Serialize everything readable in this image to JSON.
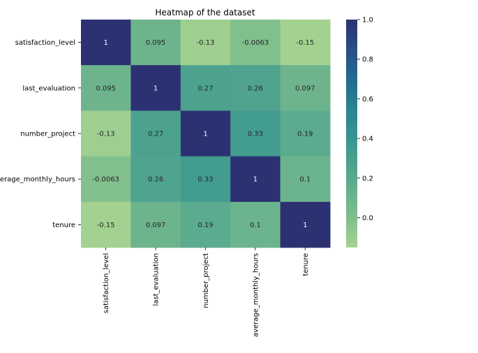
{
  "chart_data": {
    "type": "heatmap",
    "title": "Heatmap of the dataset",
    "x_categories": [
      "satisfaction_level",
      "last_evaluation",
      "number_project",
      "average_monthly_hours",
      "tenure"
    ],
    "y_categories": [
      "satisfaction_level",
      "last_evaluation",
      "number_project",
      "average_monthly_hours",
      "tenure"
    ],
    "values": [
      [
        1,
        0.095,
        -0.13,
        -0.0063,
        -0.15
      ],
      [
        0.095,
        1,
        0.27,
        0.26,
        0.097
      ],
      [
        -0.13,
        0.27,
        1,
        0.33,
        0.19
      ],
      [
        -0.0063,
        0.26,
        0.33,
        1,
        0.1
      ],
      [
        -0.15,
        0.097,
        0.19,
        0.1,
        1
      ]
    ],
    "annotations": [
      [
        "1",
        "0.095",
        "-0.13",
        "-0.0063",
        "-0.15"
      ],
      [
        "0.095",
        "1",
        "0.27",
        "0.26",
        "0.097"
      ],
      [
        "-0.13",
        "0.27",
        "1",
        "0.33",
        "0.19"
      ],
      [
        "-0.0063",
        "0.26",
        "0.33",
        "1",
        "0.1"
      ],
      [
        "-0.15",
        "0.097",
        "0.19",
        "0.1",
        "1"
      ]
    ],
    "vmin": -0.15,
    "vmax": 1,
    "colormap": "crest",
    "colorbar": {
      "ticks": [
        0.0,
        0.2,
        0.4,
        0.6,
        0.8,
        1.0
      ],
      "tick_labels": [
        "0.0",
        "0.2",
        "0.4",
        "0.6",
        "0.8",
        "1.0"
      ]
    }
  }
}
